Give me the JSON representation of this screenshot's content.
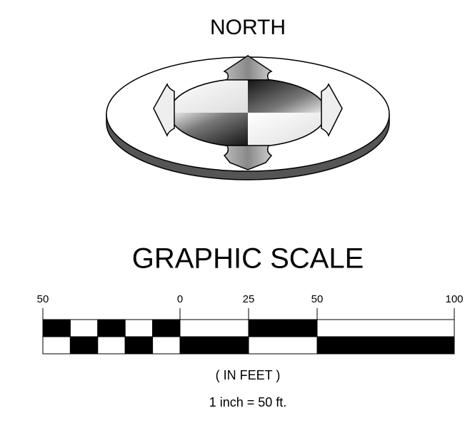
{
  "north_label": "NORTH",
  "scale": {
    "title": "GRAPHIC SCALE",
    "ticks": [
      "50",
      "0",
      "25",
      "50",
      "100"
    ],
    "units": "( IN FEET )",
    "ratio": "1 inch = 50 ft."
  }
}
